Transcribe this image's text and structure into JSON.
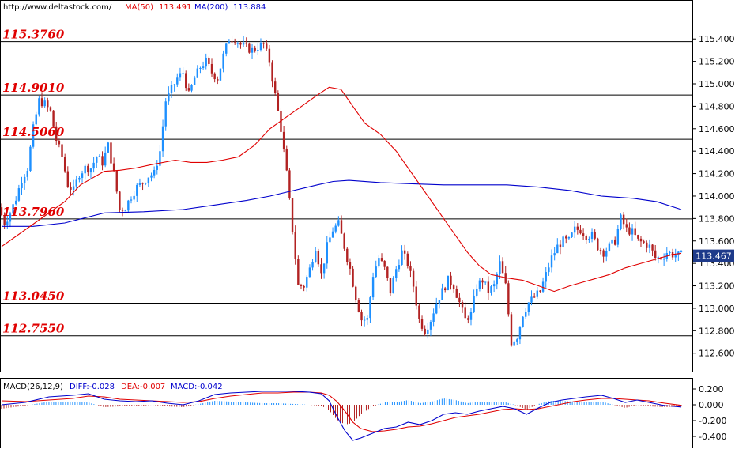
{
  "header": {
    "url": "http://www.deltastock.com/",
    "ma50_label": "MA(50)",
    "ma50_value": "113.491",
    "ma200_label": "MA(200)",
    "ma200_value": "113.884"
  },
  "macd_header": {
    "title": "MACD(26,12,9)",
    "diff": "DIFF:-0.028",
    "dea": "DEA:-0.007",
    "macd": "MACD:-0.042"
  },
  "current_price": "113.467",
  "colors": {
    "up_candle": "#1e90ff",
    "down_candle": "#b22222",
    "ma50": "#e00000",
    "ma200": "#0000cc",
    "level_text": "#e00000",
    "price_box": "#1e3a8a"
  },
  "chart_data": [
    {
      "type": "candlestick",
      "title": "",
      "y_ticks": [
        "115.400",
        "115.200",
        "115.000",
        "114.800",
        "114.600",
        "114.400",
        "114.200",
        "114.000",
        "113.800",
        "113.600",
        "113.400",
        "113.200",
        "113.000",
        "112.800",
        "112.600"
      ],
      "ylim": [
        112.45,
        115.62
      ],
      "levels": [
        {
          "label": "115.3760",
          "value": 115.376
        },
        {
          "label": "114.9010",
          "value": 114.901
        },
        {
          "label": "114.5060",
          "value": 114.506
        },
        {
          "label": "113.7960",
          "value": 113.796
        },
        {
          "label": "113.0450",
          "value": 113.045
        },
        {
          "label": "112.7550",
          "value": 112.755
        }
      ],
      "price_anchors": [
        [
          0,
          113.9
        ],
        [
          6,
          113.76
        ],
        [
          12,
          113.85
        ],
        [
          18,
          113.98
        ],
        [
          24,
          114.15
        ],
        [
          30,
          114.25
        ],
        [
          36,
          114.6
        ],
        [
          42,
          114.85
        ],
        [
          48,
          114.82
        ],
        [
          54,
          114.75
        ],
        [
          60,
          114.5
        ],
        [
          66,
          114.35
        ],
        [
          72,
          114.1
        ],
        [
          78,
          114.05
        ],
        [
          84,
          114.2
        ],
        [
          90,
          114.25
        ],
        [
          96,
          114.25
        ],
        [
          102,
          114.35
        ],
        [
          108,
          114.3
        ],
        [
          114,
          114.45
        ],
        [
          120,
          114.2
        ],
        [
          126,
          113.88
        ],
        [
          132,
          113.9
        ],
        [
          138,
          114.0
        ],
        [
          144,
          114.08
        ],
        [
          150,
          114.12
        ],
        [
          156,
          114.18
        ],
        [
          162,
          114.2
        ],
        [
          168,
          114.4
        ],
        [
          174,
          114.85
        ],
        [
          180,
          114.95
        ],
        [
          186,
          115.05
        ],
        [
          192,
          115.1
        ],
        [
          198,
          114.9
        ],
        [
          204,
          115.05
        ],
        [
          210,
          115.15
        ],
        [
          216,
          115.2
        ],
        [
          222,
          115.1
        ],
        [
          228,
          115.05
        ],
        [
          234,
          115.25
        ],
        [
          240,
          115.4
        ],
        [
          246,
          115.4
        ],
        [
          252,
          115.35
        ],
        [
          258,
          115.32
        ],
        [
          264,
          115.3
        ],
        [
          270,
          115.33
        ],
        [
          276,
          115.35
        ],
        [
          282,
          115.2
        ],
        [
          288,
          114.9
        ],
        [
          294,
          114.6
        ],
        [
          300,
          114.2
        ],
        [
          306,
          113.7
        ],
        [
          312,
          113.2
        ],
        [
          318,
          113.2
        ],
        [
          324,
          113.35
        ],
        [
          330,
          113.55
        ],
        [
          336,
          113.3
        ],
        [
          342,
          113.55
        ],
        [
          348,
          113.7
        ],
        [
          354,
          113.75
        ],
        [
          360,
          113.55
        ],
        [
          366,
          113.35
        ],
        [
          372,
          113.1
        ],
        [
          378,
          112.9
        ],
        [
          384,
          112.9
        ],
        [
          390,
          113.3
        ],
        [
          396,
          113.45
        ],
        [
          402,
          113.35
        ],
        [
          408,
          113.15
        ],
        [
          414,
          113.35
        ],
        [
          420,
          113.5
        ],
        [
          426,
          113.4
        ],
        [
          432,
          113.2
        ],
        [
          438,
          112.9
        ],
        [
          444,
          112.8
        ],
        [
          450,
          112.9
        ],
        [
          456,
          113.05
        ],
        [
          462,
          113.15
        ],
        [
          468,
          113.25
        ],
        [
          474,
          113.2
        ],
        [
          480,
          113.05
        ],
        [
          486,
          112.9
        ],
        [
          492,
          112.95
        ],
        [
          498,
          113.2
        ],
        [
          504,
          113.25
        ],
        [
          510,
          113.15
        ],
        [
          516,
          113.2
        ],
        [
          522,
          113.4
        ],
        [
          528,
          113.2
        ],
        [
          534,
          112.7
        ],
        [
          540,
          112.75
        ],
        [
          546,
          112.95
        ],
        [
          552,
          113.05
        ],
        [
          558,
          113.1
        ],
        [
          564,
          113.15
        ],
        [
          570,
          113.3
        ],
        [
          576,
          113.45
        ],
        [
          582,
          113.55
        ],
        [
          588,
          113.6
        ],
        [
          594,
          113.6
        ],
        [
          600,
          113.7
        ],
        [
          606,
          113.7
        ],
        [
          612,
          113.65
        ],
        [
          618,
          113.65
        ],
        [
          624,
          113.55
        ],
        [
          630,
          113.5
        ],
        [
          636,
          113.55
        ],
        [
          642,
          113.6
        ],
        [
          648,
          113.8
        ],
        [
          654,
          113.7
        ],
        [
          660,
          113.68
        ],
        [
          666,
          113.6
        ],
        [
          672,
          113.58
        ],
        [
          678,
          113.55
        ],
        [
          684,
          113.45
        ],
        [
          690,
          113.45
        ],
        [
          696,
          113.5
        ],
        [
          702,
          113.48
        ],
        [
          708,
          113.47
        ]
      ],
      "ma50": [
        [
          0,
          113.55
        ],
        [
          40,
          113.75
        ],
        [
          80,
          113.95
        ],
        [
          100,
          114.1
        ],
        [
          130,
          114.22
        ],
        [
          150,
          114.23
        ],
        [
          170,
          114.25
        ],
        [
          190,
          114.28
        ],
        [
          220,
          114.32
        ],
        [
          240,
          114.3
        ],
        [
          260,
          114.3
        ],
        [
          280,
          114.32
        ],
        [
          300,
          114.35
        ],
        [
          320,
          114.45
        ],
        [
          340,
          114.6
        ],
        [
          360,
          114.7
        ],
        [
          380,
          114.8
        ],
        [
          400,
          114.9
        ],
        [
          415,
          114.97
        ],
        [
          430,
          114.95
        ],
        [
          445,
          114.8
        ],
        [
          460,
          114.65
        ],
        [
          480,
          114.55
        ],
        [
          500,
          114.4
        ],
        [
          515,
          114.25
        ],
        [
          530,
          114.1
        ],
        [
          545,
          113.95
        ],
        [
          560,
          113.8
        ],
        [
          575,
          113.65
        ],
        [
          590,
          113.5
        ],
        [
          605,
          113.38
        ],
        [
          620,
          113.3
        ],
        [
          640,
          113.27
        ],
        [
          660,
          113.25
        ],
        [
          680,
          113.2
        ],
        [
          700,
          113.15
        ],
        [
          720,
          113.2
        ],
        [
          740,
          113.24
        ],
        [
          770,
          113.3
        ],
        [
          790,
          113.36
        ],
        [
          810,
          113.4
        ],
        [
          830,
          113.44
        ],
        [
          850,
          113.48
        ],
        [
          861,
          113.49
        ]
      ],
      "ma200": [
        [
          0,
          113.73
        ],
        [
          40,
          113.73
        ],
        [
          80,
          113.76
        ],
        [
          130,
          113.85
        ],
        [
          180,
          113.86
        ],
        [
          230,
          113.88
        ],
        [
          270,
          113.92
        ],
        [
          310,
          113.96
        ],
        [
          340,
          114.0
        ],
        [
          370,
          114.05
        ],
        [
          400,
          114.1
        ],
        [
          420,
          114.13
        ],
        [
          440,
          114.14
        ],
        [
          480,
          114.12
        ],
        [
          520,
          114.11
        ],
        [
          560,
          114.1
        ],
        [
          600,
          114.1
        ],
        [
          640,
          114.1
        ],
        [
          680,
          114.08
        ],
        [
          720,
          114.05
        ],
        [
          760,
          114.0
        ],
        [
          800,
          113.98
        ],
        [
          830,
          113.95
        ],
        [
          861,
          113.88
        ]
      ],
      "note_x": "x in anchors is the sample index span of the plotted period; values in price units"
    },
    {
      "type": "macd",
      "title": "MACD(26,12,9)",
      "y_ticks": [
        "0.200",
        "0.000",
        "-0.200",
        "-0.400"
      ],
      "ylim": [
        -0.52,
        0.3
      ],
      "diff": [
        [
          0,
          0.0
        ],
        [
          30,
          0.03
        ],
        [
          60,
          0.1
        ],
        [
          90,
          0.12
        ],
        [
          110,
          0.14
        ],
        [
          130,
          0.07
        ],
        [
          150,
          0.05
        ],
        [
          170,
          0.04
        ],
        [
          190,
          0.05
        ],
        [
          210,
          0.02
        ],
        [
          230,
          0.0
        ],
        [
          250,
          0.05
        ],
        [
          270,
          0.13
        ],
        [
          290,
          0.15
        ],
        [
          310,
          0.16
        ],
        [
          330,
          0.17
        ],
        [
          350,
          0.17
        ],
        [
          370,
          0.17
        ],
        [
          390,
          0.16
        ],
        [
          405,
          0.14
        ],
        [
          415,
          0.05
        ],
        [
          425,
          -0.15
        ],
        [
          435,
          -0.33
        ],
        [
          445,
          -0.45
        ],
        [
          455,
          -0.42
        ],
        [
          470,
          -0.36
        ],
        [
          485,
          -0.3
        ],
        [
          500,
          -0.28
        ],
        [
          515,
          -0.22
        ],
        [
          530,
          -0.25
        ],
        [
          545,
          -0.2
        ],
        [
          560,
          -0.12
        ],
        [
          575,
          -0.1
        ],
        [
          590,
          -0.12
        ],
        [
          605,
          -0.08
        ],
        [
          620,
          -0.05
        ],
        [
          635,
          -0.02
        ],
        [
          650,
          -0.05
        ],
        [
          665,
          -0.12
        ],
        [
          680,
          -0.04
        ],
        [
          695,
          0.03
        ],
        [
          710,
          0.06
        ],
        [
          725,
          0.08
        ],
        [
          740,
          0.1
        ],
        [
          760,
          0.12
        ],
        [
          775,
          0.08
        ],
        [
          790,
          0.03
        ],
        [
          805,
          0.06
        ],
        [
          820,
          0.03
        ],
        [
          840,
          -0.01
        ],
        [
          861,
          -0.028
        ]
      ],
      "dea": [
        [
          0,
          0.05
        ],
        [
          30,
          0.04
        ],
        [
          60,
          0.06
        ],
        [
          90,
          0.08
        ],
        [
          110,
          0.11
        ],
        [
          130,
          0.1
        ],
        [
          150,
          0.07
        ],
        [
          170,
          0.06
        ],
        [
          190,
          0.05
        ],
        [
          210,
          0.04
        ],
        [
          230,
          0.03
        ],
        [
          250,
          0.04
        ],
        [
          270,
          0.08
        ],
        [
          290,
          0.11
        ],
        [
          310,
          0.13
        ],
        [
          330,
          0.15
        ],
        [
          350,
          0.15
        ],
        [
          370,
          0.16
        ],
        [
          390,
          0.16
        ],
        [
          405,
          0.15
        ],
        [
          415,
          0.12
        ],
        [
          425,
          0.04
        ],
        [
          435,
          -0.08
        ],
        [
          445,
          -0.22
        ],
        [
          455,
          -0.3
        ],
        [
          470,
          -0.34
        ],
        [
          485,
          -0.33
        ],
        [
          500,
          -0.31
        ],
        [
          515,
          -0.28
        ],
        [
          530,
          -0.27
        ],
        [
          545,
          -0.24
        ],
        [
          560,
          -0.2
        ],
        [
          575,
          -0.16
        ],
        [
          590,
          -0.14
        ],
        [
          605,
          -0.12
        ],
        [
          620,
          -0.09
        ],
        [
          635,
          -0.06
        ],
        [
          650,
          -0.05
        ],
        [
          665,
          -0.06
        ],
        [
          680,
          -0.05
        ],
        [
          695,
          -0.02
        ],
        [
          710,
          0.01
        ],
        [
          725,
          0.04
        ],
        [
          740,
          0.06
        ],
        [
          760,
          0.08
        ],
        [
          775,
          0.08
        ],
        [
          790,
          0.07
        ],
        [
          805,
          0.06
        ],
        [
          820,
          0.05
        ],
        [
          840,
          0.02
        ],
        [
          861,
          -0.007
        ]
      ]
    }
  ]
}
